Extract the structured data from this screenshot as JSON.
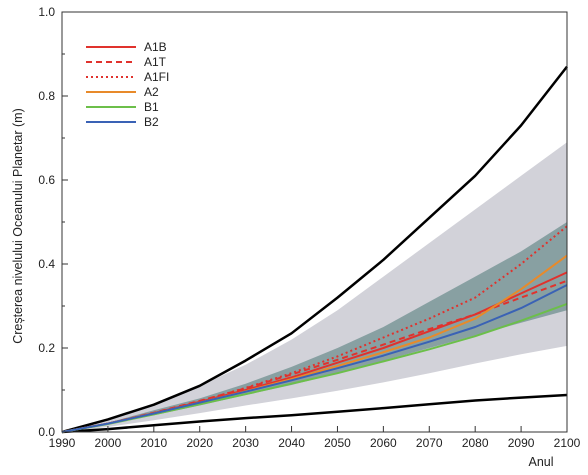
{
  "chart_data": {
    "type": "line",
    "xlabel": "Anul",
    "ylabel": "Creșterea nivelului Oceanului Planetar (m)",
    "xlim": [
      1990,
      2100
    ],
    "ylim": [
      0.0,
      1.0
    ],
    "x_ticks": [
      "1990",
      "2000",
      "2010",
      "2020",
      "2030",
      "2040",
      "2050",
      "2060",
      "2070",
      "2080",
      "2090",
      "2100"
    ],
    "y_ticks": [
      "0.0",
      "0.2",
      "0.4",
      "0.6",
      "0.8",
      "1.0"
    ],
    "grid": false,
    "legend_position": "top-left",
    "bands": [
      {
        "kind": "outer-range",
        "color": "#d2d2d9",
        "x": [
          1990,
          2000,
          2010,
          2020,
          2030,
          2040,
          2050,
          2060,
          2070,
          2080,
          2090,
          2100
        ],
        "lower": [
          0.0,
          0.012,
          0.028,
          0.045,
          0.063,
          0.08,
          0.098,
          0.118,
          0.14,
          0.163,
          0.185,
          0.205
        ],
        "upper": [
          0.0,
          0.03,
          0.065,
          0.11,
          0.16,
          0.22,
          0.29,
          0.37,
          0.45,
          0.53,
          0.61,
          0.69
        ]
      },
      {
        "kind": "model-average-range",
        "color": "#6f8f8f",
        "x": [
          1990,
          2000,
          2010,
          2020,
          2030,
          2040,
          2050,
          2060,
          2070,
          2080,
          2090,
          2100
        ],
        "lower": [
          0.0,
          0.018,
          0.04,
          0.063,
          0.088,
          0.112,
          0.14,
          0.17,
          0.2,
          0.23,
          0.26,
          0.29
        ],
        "upper": [
          0.0,
          0.022,
          0.052,
          0.08,
          0.115,
          0.155,
          0.2,
          0.25,
          0.31,
          0.37,
          0.43,
          0.5
        ]
      }
    ],
    "envelope_lines": [
      {
        "kind": "upper-bound",
        "color": "#000000",
        "x": [
          1990,
          2000,
          2010,
          2020,
          2030,
          2040,
          2050,
          2060,
          2070,
          2080,
          2090,
          2100
        ],
        "values": [
          0.0,
          0.03,
          0.065,
          0.11,
          0.17,
          0.235,
          0.32,
          0.41,
          0.51,
          0.61,
          0.73,
          0.87
        ]
      },
      {
        "kind": "lower-bound",
        "color": "#000000",
        "x": [
          1990,
          2000,
          2010,
          2020,
          2030,
          2040,
          2050,
          2060,
          2070,
          2080,
          2090,
          2100
        ],
        "values": [
          0.0,
          0.007,
          0.016,
          0.025,
          0.033,
          0.04,
          0.048,
          0.057,
          0.066,
          0.075,
          0.082,
          0.088
        ]
      }
    ],
    "x": [
      1990,
      2000,
      2010,
      2020,
      2030,
      2040,
      2050,
      2060,
      2070,
      2080,
      2090,
      2100
    ],
    "series": [
      {
        "name": "A1B",
        "color": "#e0322d",
        "dash": "solid",
        "values": [
          0.0,
          0.02,
          0.045,
          0.072,
          0.1,
          0.13,
          0.165,
          0.2,
          0.24,
          0.28,
          0.33,
          0.38
        ]
      },
      {
        "name": "A1T",
        "color": "#e0322d",
        "dash": "dashed",
        "values": [
          0.0,
          0.02,
          0.046,
          0.074,
          0.104,
          0.137,
          0.172,
          0.208,
          0.245,
          0.28,
          0.32,
          0.36
        ]
      },
      {
        "name": "A1FI",
        "color": "#e0322d",
        "dash": "dotted",
        "values": [
          0.0,
          0.02,
          0.045,
          0.073,
          0.105,
          0.14,
          0.18,
          0.225,
          0.27,
          0.32,
          0.4,
          0.49
        ]
      },
      {
        "name": "A2",
        "color": "#e88a2a",
        "dash": "solid",
        "values": [
          0.0,
          0.02,
          0.044,
          0.07,
          0.097,
          0.126,
          0.157,
          0.19,
          0.225,
          0.27,
          0.34,
          0.42
        ]
      },
      {
        "name": "B1",
        "color": "#6cbf4a",
        "dash": "solid",
        "values": [
          0.0,
          0.019,
          0.042,
          0.066,
          0.09,
          0.115,
          0.14,
          0.168,
          0.197,
          0.228,
          0.265,
          0.305
        ]
      },
      {
        "name": "B2",
        "color": "#3a62b5",
        "dash": "solid",
        "values": [
          0.0,
          0.02,
          0.044,
          0.07,
          0.096,
          0.123,
          0.152,
          0.182,
          0.215,
          0.25,
          0.295,
          0.35
        ]
      }
    ]
  }
}
